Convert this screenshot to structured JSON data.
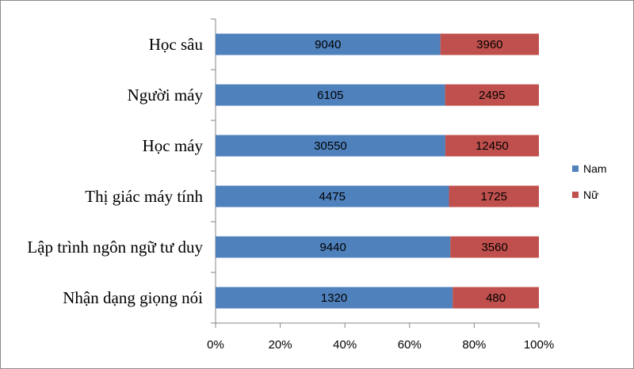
{
  "chart_data": {
    "type": "bar",
    "orientation": "horizontal",
    "stacked": "percent",
    "categories": [
      "Học sâu",
      "Người máy",
      "Học máy",
      "Thị giác máy tính",
      "Lập trình ngôn ngữ tư duy",
      "Nhận dạng giọng nói"
    ],
    "series": [
      {
        "name": "Nam",
        "color": "#4f81bd",
        "values": [
          9040,
          6105,
          30550,
          4475,
          9440,
          1320
        ]
      },
      {
        "name": "Nữ",
        "color": "#c0504d",
        "values": [
          3960,
          2495,
          12450,
          1725,
          3560,
          480
        ]
      }
    ],
    "x_ticks": [
      "0%",
      "20%",
      "40%",
      "60%",
      "80%",
      "100%"
    ],
    "xlim": [
      0,
      100
    ],
    "legend_position": "right",
    "grid": false
  }
}
